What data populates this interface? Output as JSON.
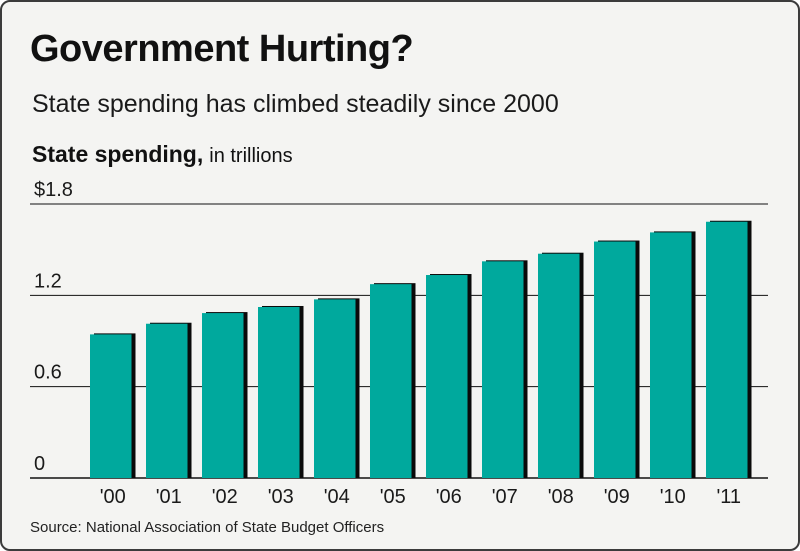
{
  "title": "Government Hurting?",
  "subtitle": "State spending has climbed steadily since 2000",
  "ylabel_main": "State spending,",
  "ylabel_unit": "in trillions",
  "source": "Source: National Association of State Budget Officers",
  "chart_data": {
    "type": "bar",
    "title": "Government Hurting?",
    "subtitle": "State spending has climbed steadily since 2000",
    "ylabel": "State spending, in trillions",
    "xlabel": "",
    "categories": [
      "'00",
      "'01",
      "'02",
      "'03",
      "'04",
      "'05",
      "'06",
      "'07",
      "'08",
      "'09",
      "'10",
      "'11"
    ],
    "values": [
      0.95,
      1.02,
      1.09,
      1.13,
      1.18,
      1.28,
      1.34,
      1.43,
      1.48,
      1.56,
      1.62,
      1.69
    ],
    "ylim": [
      0,
      1.8
    ],
    "yticks": [
      0,
      0.6,
      1.2,
      1.8
    ],
    "ytick_labels": [
      "0",
      "0.6",
      "1.2",
      "$1.8"
    ],
    "grid": true,
    "legend": "none",
    "colors": {
      "bar": "#00a99d",
      "bar_shadow": "#0a0a0a",
      "gridline": "#111111",
      "background": "#f4f4f2"
    }
  }
}
